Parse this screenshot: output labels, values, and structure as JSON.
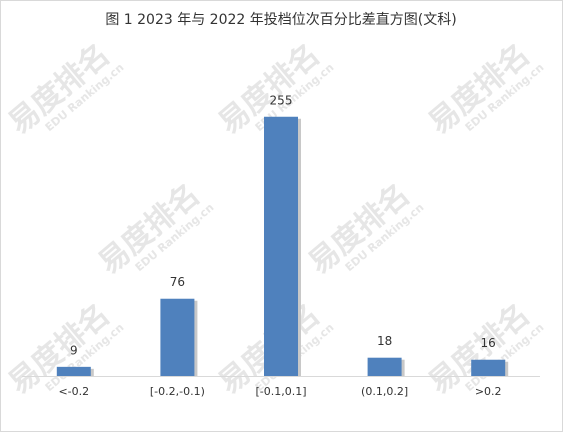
{
  "chart_data": {
    "type": "bar",
    "title": "图 1 2023 年与 2022 年投档位次百分比差直方图(文科)",
    "watermark": "易度排名",
    "watermark_sub": "EDU Ranking.cn",
    "categories": [
      "<-0.2",
      "[-0.2,-0.1)",
      "[-0.1,0.1]",
      "(0.1,0.2]",
      ">0.2"
    ],
    "values": [
      9,
      76,
      255,
      18,
      16
    ],
    "color": "#4f81bd",
    "ylim": [
      0,
      300
    ]
  }
}
